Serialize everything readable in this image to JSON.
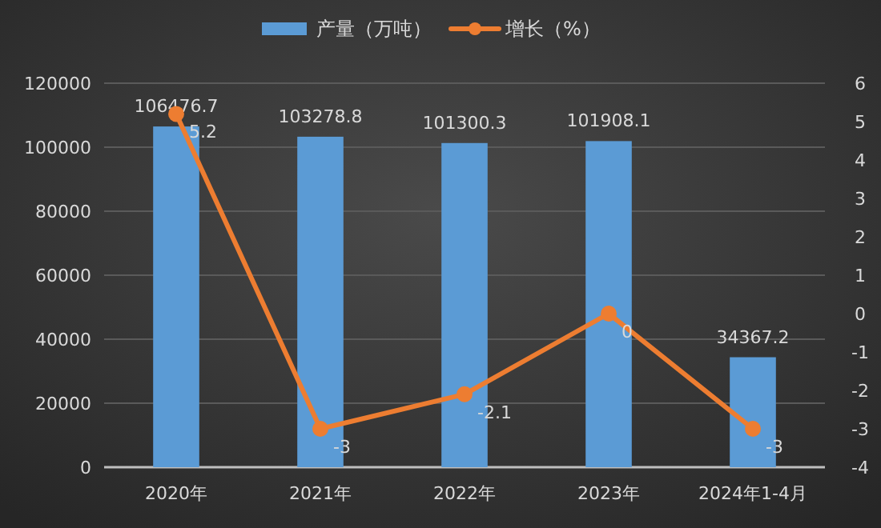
{
  "chart_data": {
    "type": "bar",
    "categories": [
      "2020年",
      "2021年",
      "2022年",
      "2023年",
      "2024年1-4月"
    ],
    "series": [
      {
        "name": "产量（万吨）",
        "color": "#5b9bd5",
        "values": [
          106476.7,
          103278.8,
          101300.3,
          101908.1,
          34367.2
        ]
      },
      {
        "name": "增长（%）",
        "type": "line",
        "axis": "y2",
        "color": "#ed7d31",
        "marker": "circle",
        "values": [
          5.2,
          -3,
          -2.1,
          0,
          -3
        ]
      }
    ],
    "ylim": [
      0,
      120000
    ],
    "yticks": [
      0,
      20000,
      40000,
      60000,
      80000,
      100000,
      120000
    ],
    "y2lim": [
      -4,
      6
    ],
    "y2ticks": [
      -4,
      -3,
      -2,
      -1,
      0,
      1,
      2,
      3,
      4,
      5,
      6
    ],
    "grid": "y",
    "legend": "top",
    "data_labels": true
  }
}
